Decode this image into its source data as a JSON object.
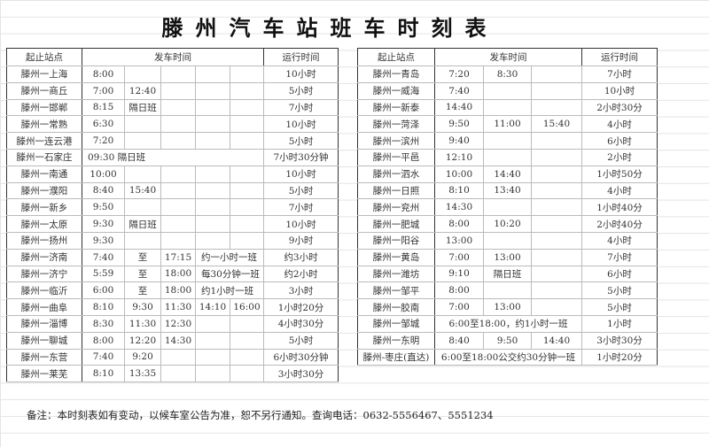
{
  "title": "滕州汽车站班车时刻表",
  "headers": {
    "station": "起止站点",
    "departure": "发车时间",
    "duration": "运行时间"
  },
  "left_rows": [
    {
      "station": "滕州一上海",
      "times": [
        "8:00",
        "",
        "",
        "",
        ""
      ],
      "duration": "10小时"
    },
    {
      "station": "滕州一商丘",
      "times": [
        "7:00",
        "12:40",
        "",
        "",
        ""
      ],
      "duration": "5小时"
    },
    {
      "station": "滕州一邯郸",
      "times": [
        "8:15",
        "隔日班",
        "",
        "",
        ""
      ],
      "duration": "7小时"
    },
    {
      "station": "滕州一常熟",
      "times": [
        "6:30",
        "",
        "",
        "",
        ""
      ],
      "duration": "10小时"
    },
    {
      "station": "滕州一连云港",
      "times": [
        "7:20",
        "",
        "",
        "",
        ""
      ],
      "duration": "5小时"
    },
    {
      "station": "滕州一石家庄",
      "merged": "09:30  隔日班",
      "duration": "7小时30分钟"
    },
    {
      "station": "滕州一南通",
      "times": [
        "10:00",
        "",
        "",
        "",
        ""
      ],
      "duration": "10小时"
    },
    {
      "station": "滕州一濮阳",
      "times": [
        "8:40",
        "15:40",
        "",
        "",
        ""
      ],
      "duration": "5小时"
    },
    {
      "station": "滕州一新乡",
      "times": [
        "9:50",
        "",
        "",
        "",
        ""
      ],
      "duration": "7小时"
    },
    {
      "station": "滕州一太原",
      "times": [
        "9:30",
        "隔日班",
        "",
        "",
        ""
      ],
      "duration": "10小时"
    },
    {
      "station": "滕州一扬州",
      "times": [
        "9:30",
        "",
        "",
        "",
        ""
      ],
      "duration": "9小时"
    },
    {
      "station": "滕州一济南",
      "times": [
        "7:40",
        "至",
        "17:15"
      ],
      "note": "约一小时一班",
      "duration": "约3小时"
    },
    {
      "station": "滕州一济宁",
      "times": [
        "5:59",
        "至",
        "18:00"
      ],
      "note": "每30分钟一班",
      "duration": "约2小时"
    },
    {
      "station": "滕州一临沂",
      "times": [
        "6:00",
        "至",
        "18:00"
      ],
      "note": "约1小时一班",
      "duration": "3小时"
    },
    {
      "station": "滕州一曲阜",
      "times": [
        "8:10",
        "9:30",
        "11:30",
        "14:10",
        "16:00"
      ],
      "duration": "1小时20分"
    },
    {
      "station": "滕州一淄博",
      "times": [
        "8:30",
        "11:30",
        "12:30",
        "",
        ""
      ],
      "duration": "4小时30分"
    },
    {
      "station": "滕州一聊城",
      "times": [
        "8:00",
        "12:20",
        "14:30",
        "",
        ""
      ],
      "duration": "5小时"
    },
    {
      "station": "滕州一东营",
      "times": [
        "7:40",
        "9:20",
        "",
        "",
        ""
      ],
      "duration": "6小时30分钟"
    },
    {
      "station": "滕州一莱芜",
      "times": [
        "8:10",
        "13:35",
        "",
        "",
        ""
      ],
      "duration": "3小时30分"
    }
  ],
  "right_rows": [
    {
      "station": "滕州一青岛",
      "times": [
        "7:20",
        "8:30",
        ""
      ],
      "duration": "7小时"
    },
    {
      "station": "滕州一威海",
      "times": [
        "7:40",
        "",
        ""
      ],
      "duration": "10小时"
    },
    {
      "station": "滕州一新泰",
      "times": [
        "14:40",
        "",
        ""
      ],
      "duration": "2小时30分"
    },
    {
      "station": "滕州一菏泽",
      "times": [
        "9:50",
        "11:00",
        "15:40"
      ],
      "duration": "4小时"
    },
    {
      "station": "滕州一滨州",
      "times": [
        "9:40",
        "",
        ""
      ],
      "duration": "6小时"
    },
    {
      "station": "滕州一平邑",
      "times": [
        "12:10",
        "",
        ""
      ],
      "duration": "2小时"
    },
    {
      "station": "滕州一泗水",
      "times": [
        "10:00",
        "14:40",
        ""
      ],
      "duration": "1小时50分"
    },
    {
      "station": "滕州一日照",
      "times": [
        "8:10",
        "13:40",
        ""
      ],
      "duration": "4小时"
    },
    {
      "station": "滕州一兖州",
      "times": [
        "14:30",
        "",
        ""
      ],
      "duration": "1小时40分"
    },
    {
      "station": "滕州一肥城",
      "times": [
        "8:00",
        "10:20",
        ""
      ],
      "duration": "2小时40分"
    },
    {
      "station": "滕州一阳谷",
      "times": [
        "13:00",
        "",
        ""
      ],
      "duration": "4小时"
    },
    {
      "station": "滕州一黄岛",
      "times": [
        "7:00",
        "13:00",
        ""
      ],
      "duration": "7小时"
    },
    {
      "station": "滕州一潍坊",
      "times": [
        "9:10",
        "隔日班",
        ""
      ],
      "duration": "6小时"
    },
    {
      "station": "滕州一邹平",
      "times": [
        "8:00",
        "",
        ""
      ],
      "duration": "5小时"
    },
    {
      "station": "滕州一胶南",
      "times": [
        "7:00",
        "13:00",
        ""
      ],
      "duration": "5小时"
    },
    {
      "station": "滕州一邹城",
      "merged": "6:00至18:00，约1小时一班",
      "duration": "1小时"
    },
    {
      "station": "滕州一东明",
      "times": [
        "8:40",
        "9:50",
        "14:40"
      ],
      "duration": "3小时30分"
    },
    {
      "station": "滕州-枣庄(直达)",
      "merged": "6:00至18:00公交约30分钟一班",
      "duration": "1小时20分"
    }
  ],
  "footer": "备注：本时刻表如有变动，以候车室公告为准，恕不另行通知。查询电话：0632-5556467、5551234"
}
